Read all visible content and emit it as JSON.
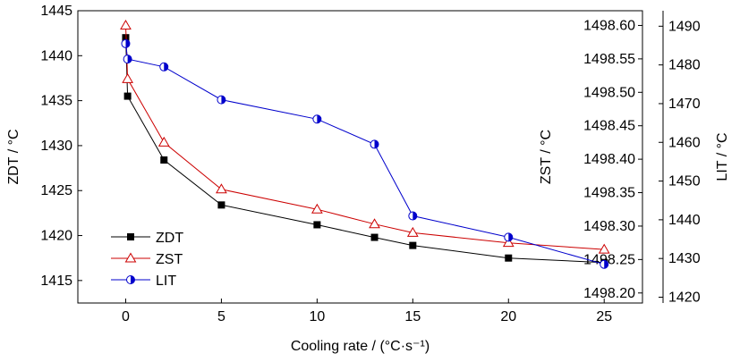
{
  "chart_data": {
    "type": "line",
    "x": [
      0,
      0.1,
      2,
      5,
      10,
      13,
      15,
      20,
      25
    ],
    "xlabel": "Cooling rate / (°C·s⁻¹)",
    "xlim": [
      -2.5,
      27
    ],
    "xticks": [
      0,
      5,
      10,
      15,
      20,
      25
    ],
    "xtick_labels": [
      "0",
      "5",
      "10",
      "15",
      "20",
      "25"
    ],
    "axes": {
      "left": {
        "label": "ZDT / °C",
        "lim": [
          1412.5,
          1445
        ],
        "ticks": [
          1415,
          1420,
          1425,
          1430,
          1435,
          1440,
          1445
        ],
        "tick_labels": [
          "1415",
          "1420",
          "1425",
          "1430",
          "1435",
          "1440",
          "1445"
        ]
      },
      "right_inner": {
        "label": "ZST / °C",
        "lim": [
          1498.185,
          1498.622
        ],
        "ticks": [
          1498.2,
          1498.25,
          1498.3,
          1498.35,
          1498.4,
          1498.45,
          1498.5,
          1498.55,
          1498.6
        ],
        "tick_labels": [
          "1498.20",
          "1498.25",
          "1498.30",
          "1498.35",
          "1498.40",
          "1498.45",
          "1498.50",
          "1498.55",
          "1498.60"
        ]
      },
      "right_outer": {
        "label": "LIT / °C",
        "lim": [
          1418.5,
          1494
        ],
        "ticks": [
          1420,
          1430,
          1440,
          1450,
          1460,
          1470,
          1480,
          1490
        ],
        "tick_labels": [
          "1420",
          "1430",
          "1440",
          "1450",
          "1460",
          "1470",
          "1480",
          "1490"
        ]
      }
    },
    "series": [
      {
        "name": "ZDT",
        "axis": "left",
        "color": "#000000",
        "marker": "filled-square",
        "points": [
          [
            0,
            1442
          ],
          [
            0.1,
            1435.5
          ],
          [
            2,
            1428.4
          ],
          [
            5,
            1423.4
          ],
          [
            10,
            1421.2
          ],
          [
            13,
            1419.8
          ],
          [
            15,
            1418.9
          ],
          [
            20,
            1417.5
          ],
          [
            25,
            1417.0
          ]
        ]
      },
      {
        "name": "ZST",
        "axis": "right_inner",
        "color": "#cc0000",
        "marker": "open-triangle",
        "points": [
          [
            0,
            1498.6
          ],
          [
            0.1,
            1498.52
          ],
          [
            2,
            1498.425
          ],
          [
            5,
            1498.355
          ],
          [
            10,
            1498.325
          ],
          [
            13,
            1498.303
          ],
          [
            15,
            1498.29
          ],
          [
            20,
            1498.275
          ],
          [
            25,
            1498.265
          ]
        ]
      },
      {
        "name": "LIT",
        "axis": "right_outer",
        "color": "#0000cc",
        "marker": "half-filled-circle",
        "points": [
          [
            0,
            1485.5
          ],
          [
            0.1,
            1481.5
          ],
          [
            2,
            1479.5
          ],
          [
            5,
            1471.0
          ],
          [
            10,
            1466.0
          ],
          [
            13,
            1459.5
          ],
          [
            15,
            1441.0
          ],
          [
            20,
            1435.5
          ],
          [
            25,
            1428.5
          ]
        ]
      }
    ],
    "legend": {
      "position": "bottom-left",
      "entries": [
        "ZDT",
        "ZST",
        "LIT"
      ]
    },
    "grid": false
  }
}
